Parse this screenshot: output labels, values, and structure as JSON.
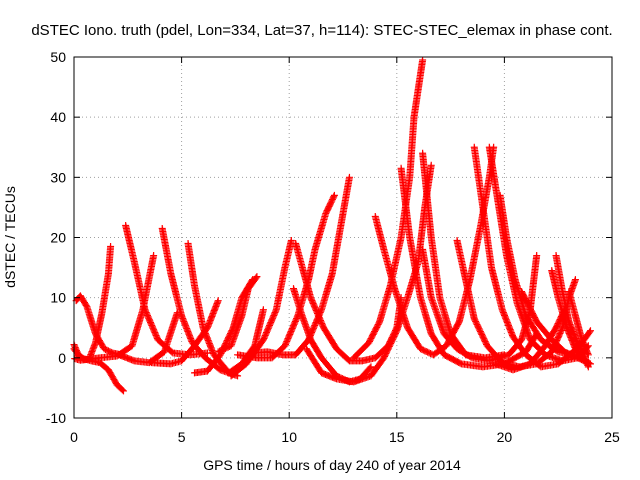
{
  "chart_data": {
    "type": "scatter",
    "title": "dSTEC Iono. truth (pdel, Lon=334, Lat=37, h=114): STEC-STEC_elemax in phase cont.",
    "xlabel": "GPS time / hours of day 240 of year 2014",
    "ylabel": "dSTEC  / TECUs",
    "xlim": [
      0,
      25
    ],
    "ylim": [
      -10,
      50
    ],
    "xticks": [
      "0",
      "5",
      "10",
      "15",
      "20",
      "25"
    ],
    "yticks": [
      "-10",
      "0",
      "10",
      "20",
      "30",
      "40",
      "50"
    ],
    "grid": true,
    "marker": "plus",
    "color": "#ff0000",
    "arcs": [
      [
        [
          0.0,
          1.5
        ],
        [
          0.3,
          0.0
        ],
        [
          0.8,
          -0.5
        ],
        [
          1.2,
          -0.8
        ],
        [
          1.6,
          -2.0
        ],
        [
          2.0,
          -4.5
        ],
        [
          2.3,
          -5.5
        ]
      ],
      [
        [
          0.1,
          9.5
        ],
        [
          0.3,
          10.3
        ],
        [
          0.6,
          8.5
        ],
        [
          1.0,
          4.0
        ],
        [
          1.4,
          1.5
        ],
        [
          1.8,
          0.8
        ],
        [
          2.2,
          0.5
        ]
      ],
      [
        [
          -0.1,
          0.0
        ],
        [
          0.3,
          -0.4
        ],
        [
          0.7,
          -0.2
        ],
        [
          1.0,
          2.5
        ],
        [
          1.3,
          7.5
        ],
        [
          1.6,
          14.0
        ],
        [
          1.7,
          18.5
        ]
      ],
      [
        [
          0.0,
          2.2
        ],
        [
          0.2,
          0.5
        ],
        [
          0.5,
          -0.3
        ],
        [
          1.2,
          0.0
        ],
        [
          2.0,
          0.3
        ],
        [
          2.7,
          2.0
        ],
        [
          3.2,
          8.0
        ],
        [
          3.7,
          17.0
        ]
      ],
      [
        [
          2.4,
          22.0
        ],
        [
          2.8,
          16.0
        ],
        [
          3.3,
          8.0
        ],
        [
          3.9,
          3.0
        ],
        [
          4.6,
          0.8
        ],
        [
          5.4,
          0.5
        ],
        [
          6.2,
          0.8
        ]
      ],
      [
        [
          2.1,
          0.5
        ],
        [
          2.8,
          -0.5
        ],
        [
          3.5,
          -0.8
        ],
        [
          4.2,
          1.0
        ],
        [
          4.8,
          7.5
        ]
      ],
      [
        [
          4.1,
          21.5
        ],
        [
          4.5,
          14.0
        ],
        [
          5.0,
          7.0
        ],
        [
          5.5,
          2.5
        ],
        [
          6.1,
          0.0
        ],
        [
          6.8,
          -2.0
        ],
        [
          7.2,
          -2.5
        ],
        [
          7.8,
          -1.0
        ],
        [
          8.4,
          2.0
        ],
        [
          8.8,
          8.0
        ]
      ],
      [
        [
          5.3,
          19.0
        ],
        [
          5.6,
          12.0
        ],
        [
          6.0,
          5.0
        ],
        [
          6.5,
          0.5
        ],
        [
          7.2,
          -2.5
        ],
        [
          7.6,
          -3.0
        ]
      ],
      [
        [
          3.6,
          -0.8
        ],
        [
          4.5,
          -1.0
        ],
        [
          5.0,
          -0.5
        ],
        [
          5.6,
          2.0
        ],
        [
          6.2,
          5.0
        ],
        [
          6.7,
          9.5
        ]
      ],
      [
        [
          5.6,
          -2.5
        ],
        [
          6.2,
          -2.2
        ],
        [
          6.8,
          0.5
        ],
        [
          7.4,
          5.0
        ],
        [
          7.8,
          10.0
        ],
        [
          8.3,
          13.0
        ]
      ],
      [
        [
          6.7,
          1.0
        ],
        [
          7.3,
          2.0
        ],
        [
          7.8,
          7.0
        ],
        [
          8.1,
          11.5
        ],
        [
          8.5,
          13.5
        ]
      ],
      [
        [
          7.3,
          -3.0
        ],
        [
          8.0,
          -1.0
        ],
        [
          8.8,
          3.0
        ],
        [
          9.4,
          8.0
        ],
        [
          9.8,
          15.0
        ],
        [
          10.1,
          19.5
        ]
      ],
      [
        [
          7.6,
          0.5
        ],
        [
          8.5,
          0.0
        ],
        [
          9.2,
          0.0
        ],
        [
          9.8,
          2.0
        ],
        [
          10.4,
          7.0
        ],
        [
          10.9,
          13.0
        ],
        [
          11.2,
          18.0
        ],
        [
          11.7,
          24.0
        ],
        [
          12.1,
          27.0
        ]
      ],
      [
        [
          8.3,
          0.8
        ],
        [
          9.0,
          1.0
        ],
        [
          9.7,
          0.5
        ],
        [
          10.3,
          0.5
        ],
        [
          10.9,
          3.0
        ],
        [
          11.5,
          8.0
        ],
        [
          12.0,
          14.0
        ],
        [
          12.4,
          22.0
        ],
        [
          12.8,
          30.0
        ]
      ],
      [
        [
          10.2,
          11.5
        ],
        [
          10.6,
          7.0
        ],
        [
          11.0,
          3.0
        ],
        [
          11.5,
          0.0
        ],
        [
          12.2,
          -3.0
        ],
        [
          12.8,
          -4.0
        ],
        [
          13.3,
          -3.5
        ],
        [
          13.8,
          -1.5
        ]
      ],
      [
        [
          10.8,
          1.5
        ],
        [
          11.5,
          -2.5
        ],
        [
          12.2,
          -3.5
        ],
        [
          13.0,
          -4.0
        ],
        [
          13.8,
          -3.0
        ],
        [
          14.4,
          0.0
        ],
        [
          15.0,
          4.5
        ],
        [
          15.5,
          10.0
        ],
        [
          16.0,
          16.0
        ],
        [
          16.3,
          25.0
        ],
        [
          16.6,
          32.0
        ]
      ],
      [
        [
          10.3,
          19.0
        ],
        [
          11.0,
          10.0
        ],
        [
          11.6,
          5.0
        ],
        [
          12.2,
          1.5
        ],
        [
          12.8,
          -0.5
        ],
        [
          13.4,
          -0.5
        ],
        [
          14.0,
          0.0
        ],
        [
          14.6,
          2.0
        ],
        [
          15.0,
          5.0
        ],
        [
          15.2,
          10.0
        ]
      ],
      [
        [
          13.0,
          0.0
        ],
        [
          13.7,
          2.5
        ],
        [
          14.2,
          6.0
        ],
        [
          14.7,
          12.0
        ],
        [
          15.2,
          20.0
        ],
        [
          15.6,
          30.0
        ],
        [
          15.8,
          40.0
        ],
        [
          16.2,
          49.5
        ]
      ],
      [
        [
          14.0,
          23.5
        ],
        [
          14.4,
          18.0
        ],
        [
          14.9,
          11.5
        ],
        [
          15.5,
          5.0
        ],
        [
          16.1,
          1.5
        ],
        [
          16.7,
          0.5
        ],
        [
          17.3,
          2.0
        ],
        [
          17.9,
          6.0
        ],
        [
          18.4,
          13.0
        ],
        [
          18.9,
          22.0
        ],
        [
          19.3,
          30.0
        ],
        [
          19.5,
          35.0
        ]
      ],
      [
        [
          15.2,
          31.5
        ],
        [
          15.6,
          20.0
        ],
        [
          16.1,
          10.0
        ],
        [
          16.6,
          4.0
        ],
        [
          17.2,
          0.5
        ],
        [
          18.0,
          -1.0
        ],
        [
          19.0,
          -1.5
        ],
        [
          20.0,
          -1.0
        ],
        [
          21.0,
          1.0
        ],
        [
          21.5,
          4.0
        ]
      ],
      [
        [
          16.2,
          34.0
        ],
        [
          16.6,
          20.0
        ],
        [
          17.0,
          10.0
        ],
        [
          17.5,
          4.0
        ],
        [
          18.2,
          0.5
        ],
        [
          19.1,
          0.0
        ],
        [
          20.0,
          0.5
        ]
      ],
      [
        [
          16.2,
          18.0
        ],
        [
          16.6,
          10.0
        ],
        [
          17.2,
          4.0
        ],
        [
          17.8,
          1.5
        ],
        [
          18.5,
          0.0
        ],
        [
          19.3,
          -0.5
        ],
        [
          20.2,
          0.5
        ],
        [
          20.8,
          3.0
        ],
        [
          21.2,
          8.0
        ],
        [
          21.5,
          17.0
        ]
      ],
      [
        [
          17.8,
          19.5
        ],
        [
          18.2,
          13.0
        ],
        [
          18.6,
          6.5
        ],
        [
          19.2,
          2.0
        ],
        [
          19.9,
          -0.8
        ],
        [
          20.7,
          -1.5
        ],
        [
          21.5,
          -1.0
        ],
        [
          22.2,
          1.0
        ],
        [
          22.7,
          5.0
        ],
        [
          23.0,
          10.0
        ],
        [
          23.3,
          13.0
        ]
      ],
      [
        [
          18.6,
          35.0
        ],
        [
          19.0,
          25.0
        ],
        [
          19.4,
          15.0
        ],
        [
          19.9,
          8.0
        ],
        [
          20.4,
          3.5
        ],
        [
          21.0,
          0.5
        ],
        [
          21.7,
          -1.5
        ],
        [
          22.5,
          -1.0
        ],
        [
          23.2,
          1.0
        ],
        [
          23.7,
          3.0
        ],
        [
          24.0,
          4.5
        ]
      ],
      [
        [
          19.3,
          35.0
        ],
        [
          19.7,
          26.0
        ],
        [
          20.1,
          17.0
        ],
        [
          20.6,
          9.0
        ],
        [
          21.2,
          3.0
        ],
        [
          21.9,
          0.5
        ],
        [
          22.7,
          -0.5
        ],
        [
          23.4,
          0.0
        ],
        [
          23.9,
          2.0
        ]
      ],
      [
        [
          19.8,
          27.0
        ],
        [
          20.1,
          20.0
        ],
        [
          20.5,
          13.0
        ],
        [
          21.0,
          7.0
        ],
        [
          21.7,
          3.0
        ],
        [
          22.5,
          1.0
        ],
        [
          23.2,
          0.5
        ],
        [
          23.8,
          -0.5
        ]
      ],
      [
        [
          19.6,
          -1.0
        ],
        [
          20.4,
          -2.0
        ],
        [
          21.2,
          -1.0
        ],
        [
          21.9,
          2.0
        ],
        [
          22.4,
          5.0
        ],
        [
          22.8,
          8.0
        ]
      ],
      [
        [
          22.4,
          17.0
        ],
        [
          22.7,
          11.0
        ],
        [
          23.0,
          6.0
        ],
        [
          23.4,
          2.5
        ],
        [
          23.7,
          0.5
        ],
        [
          23.9,
          -1.5
        ]
      ],
      [
        [
          22.2,
          14.5
        ],
        [
          22.5,
          10.0
        ],
        [
          22.9,
          5.0
        ],
        [
          23.3,
          1.5
        ],
        [
          23.7,
          -0.5
        ],
        [
          24.0,
          -1.0
        ]
      ],
      [
        [
          23.0,
          11.0
        ],
        [
          23.3,
          7.0
        ],
        [
          23.6,
          3.0
        ],
        [
          23.9,
          0.5
        ]
      ],
      [
        [
          20.8,
          11.0
        ],
        [
          21.5,
          6.0
        ],
        [
          22.2,
          3.0
        ],
        [
          22.8,
          1.0
        ],
        [
          23.4,
          0.0
        ],
        [
          23.9,
          -0.8
        ]
      ]
    ]
  }
}
